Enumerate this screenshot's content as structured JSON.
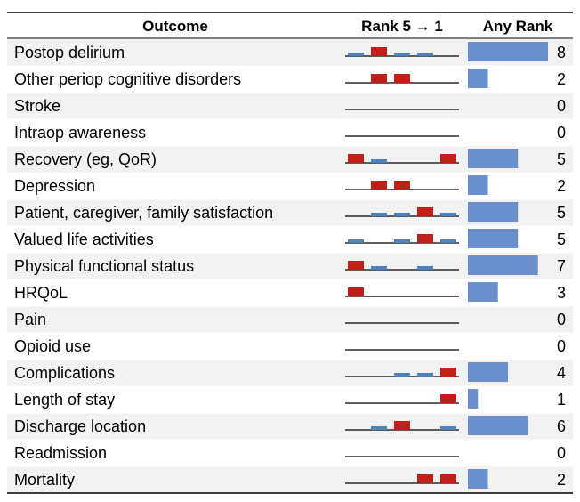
{
  "header": {
    "outcome": "Outcome",
    "rank": "Rank 5 → 1",
    "any_rank": "Any Rank"
  },
  "colors": {
    "rank1": "#c0201b",
    "rank_other": "#4f81bd",
    "any_rank_bar": "#6b8fcc",
    "stripe": "#f2f2f2"
  },
  "chart_data": {
    "type": "table",
    "rank_order": [
      5,
      4,
      3,
      2,
      1
    ],
    "any_rank_max": 8,
    "rows": [
      {
        "outcome": "Postop delirium",
        "ranks": [
          "blue_small",
          "red",
          "blue_small",
          "blue_small",
          "none"
        ],
        "count": 8
      },
      {
        "outcome": "Other periop cognitive disorders",
        "ranks": [
          "none",
          "red",
          "red",
          "none",
          "none"
        ],
        "count": 2
      },
      {
        "outcome": "Stroke",
        "ranks": [
          "none",
          "none",
          "none",
          "none",
          "none"
        ],
        "count": 0
      },
      {
        "outcome": "Intraop awareness",
        "ranks": [
          "none",
          "none",
          "none",
          "none",
          "none"
        ],
        "count": 0
      },
      {
        "outcome": "Recovery (eg, QoR)",
        "ranks": [
          "red",
          "blue_small",
          "none",
          "none",
          "red"
        ],
        "count": 5
      },
      {
        "outcome": "Depression",
        "ranks": [
          "none",
          "red",
          "red",
          "none",
          "none"
        ],
        "count": 2
      },
      {
        "outcome": "Patient, caregiver, family satisfaction",
        "ranks": [
          "none",
          "blue_small",
          "blue_small",
          "red",
          "blue_small"
        ],
        "count": 5
      },
      {
        "outcome": "Valued life activities",
        "ranks": [
          "blue_small",
          "none",
          "blue_small",
          "red",
          "blue_small"
        ],
        "count": 5
      },
      {
        "outcome": "Physical functional status",
        "ranks": [
          "red",
          "blue_small",
          "none",
          "blue_small",
          "none"
        ],
        "count": 7
      },
      {
        "outcome": "HRQoL",
        "ranks": [
          "red",
          "none",
          "none",
          "none",
          "none"
        ],
        "count": 3
      },
      {
        "outcome": "Pain",
        "ranks": [
          "none",
          "none",
          "none",
          "none",
          "none"
        ],
        "count": 0
      },
      {
        "outcome": "Opioid use",
        "ranks": [
          "none",
          "none",
          "none",
          "none",
          "none"
        ],
        "count": 0
      },
      {
        "outcome": "Complications",
        "ranks": [
          "none",
          "none",
          "blue_small",
          "blue_small",
          "red"
        ],
        "count": 4
      },
      {
        "outcome": "Length of stay",
        "ranks": [
          "none",
          "none",
          "none",
          "none",
          "red"
        ],
        "count": 1
      },
      {
        "outcome": "Discharge location",
        "ranks": [
          "none",
          "blue_small",
          "red",
          "none",
          "blue_small"
        ],
        "count": 6
      },
      {
        "outcome": "Readmission",
        "ranks": [
          "none",
          "none",
          "none",
          "none",
          "none"
        ],
        "count": 0
      },
      {
        "outcome": "Mortality",
        "ranks": [
          "none",
          "none",
          "none",
          "red",
          "red"
        ],
        "count": 2
      }
    ]
  }
}
